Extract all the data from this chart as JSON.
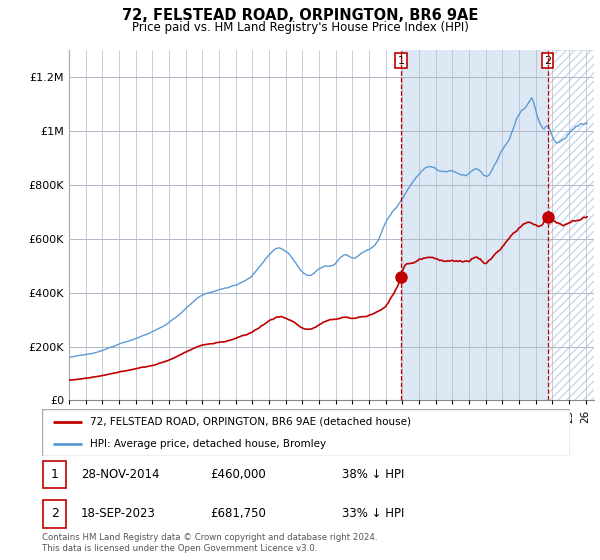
{
  "title": "72, FELSTEAD ROAD, ORPINGTON, BR6 9AE",
  "subtitle": "Price paid vs. HM Land Registry's House Price Index (HPI)",
  "ylabel_ticks": [
    "£0",
    "£200K",
    "£400K",
    "£600K",
    "£800K",
    "£1M",
    "£1.2M"
  ],
  "ytick_vals": [
    0,
    200000,
    400000,
    600000,
    800000,
    1000000,
    1200000
  ],
  "ylim": [
    0,
    1300000
  ],
  "xlim_start": 1995.0,
  "xlim_end": 2026.5,
  "hpi_color": "#5b9bd5",
  "price_color": "#c00000",
  "vline_color": "#c00000",
  "transaction1_x": 2014.91,
  "transaction1_y": 460000,
  "transaction2_x": 2023.72,
  "transaction2_y": 681750,
  "legend_line1": "72, FELSTEAD ROAD, ORPINGTON, BR6 9AE (detached house)",
  "legend_line2": "HPI: Average price, detached house, Bromley",
  "table_rows": [
    [
      "1",
      "28-NOV-2014",
      "£460,000",
      "38% ↓ HPI"
    ],
    [
      "2",
      "18-SEP-2023",
      "£681,750",
      "33% ↓ HPI"
    ]
  ],
  "footnote": "Contains HM Land Registry data © Crown copyright and database right 2024.\nThis data is licensed under the Open Government Licence v3.0.",
  "plot_bg_color": "#dce9f5",
  "shade_between_color": "#dce9f5",
  "hatch_color": "#c8d8ea"
}
